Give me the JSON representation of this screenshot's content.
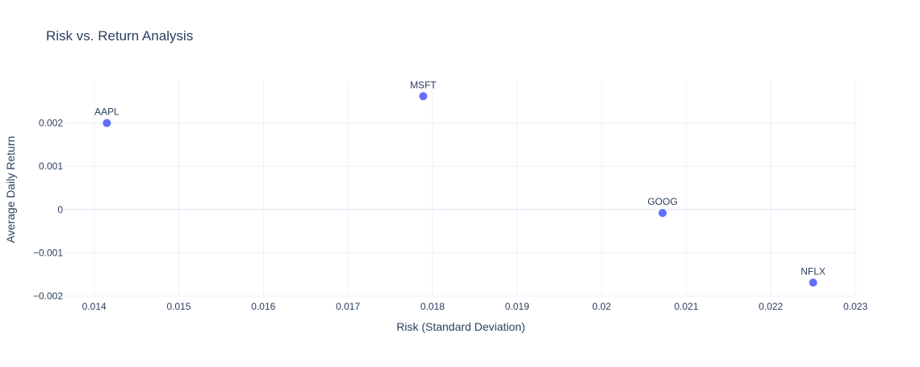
{
  "chart_data": {
    "type": "scatter",
    "title": "Risk vs. Return Analysis",
    "xlabel": "Risk (Standard Deviation)",
    "ylabel": "Average Daily Return",
    "xlim": [
      0.01365,
      0.023
    ],
    "ylim": [
      -0.002,
      0.00298
    ],
    "xticks": [
      0.014,
      0.015,
      0.016,
      0.017,
      0.018,
      0.019,
      0.02,
      0.021,
      0.022,
      0.023
    ],
    "xtick_labels": [
      "0.014",
      "0.015",
      "0.016",
      "0.017",
      "0.018",
      "0.019",
      "0.02",
      "0.021",
      "0.022",
      "0.023"
    ],
    "yticks": [
      -0.002,
      -0.001,
      0,
      0.001,
      0.002
    ],
    "ytick_labels": [
      "−0.002",
      "−0.001",
      "0",
      "0.001",
      "0.002"
    ],
    "grid": true,
    "marker_color": "#636efa",
    "points": [
      {
        "label": "AAPL",
        "x": 0.01415,
        "y": 0.002
      },
      {
        "label": "MSFT",
        "x": 0.01789,
        "y": 0.00262
      },
      {
        "label": "GOOG",
        "x": 0.02072,
        "y": -8e-05
      },
      {
        "label": "NFLX",
        "x": 0.0225,
        "y": -0.00169
      }
    ]
  }
}
